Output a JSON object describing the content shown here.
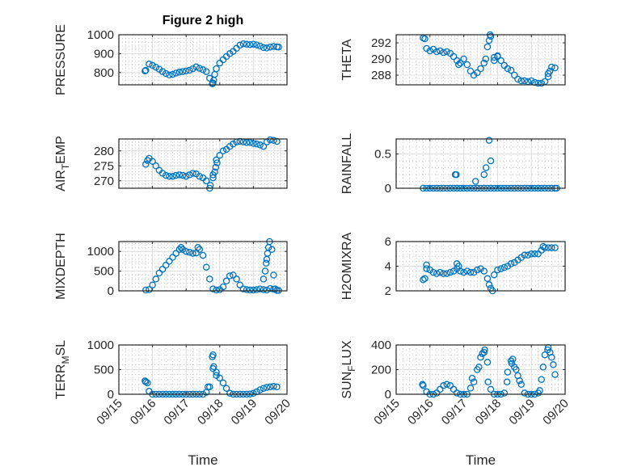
{
  "figure": {
    "title": "Figure 2 high",
    "marker_color": "#0072BD"
  },
  "chart_data": [
    {
      "type": "scatter",
      "ylabel": {
        "main": "PRESSURE",
        "sub": "",
        "rest": ""
      },
      "ylim": [
        735,
        1000
      ],
      "yticks": [
        800,
        900,
        1000
      ],
      "ytick_labels": [
        "800",
        "900",
        "1000"
      ],
      "xlim_days_from_0915": [
        0,
        5
      ],
      "x_start": 0.8,
      "x_step": 0.1,
      "y": [
        812,
        845,
        838,
        828,
        818,
        805,
        795,
        787,
        790,
        797,
        802,
        805,
        808,
        812,
        820,
        830,
        822,
        815,
        805,
        770,
        745,
        820,
        850,
        868,
        885,
        900,
        912,
        928,
        945,
        952,
        950,
        948,
        950,
        946,
        940,
        932,
        930,
        935,
        938,
        936
      ],
      "extra": [
        [
          0.78,
          808
        ],
        [
          2.78,
          740
        ],
        [
          2.82,
          760
        ],
        [
          2.85,
          790
        ],
        [
          4.75,
          935
        ]
      ]
    },
    {
      "type": "scatter",
      "ylabel": {
        "main": "THETA",
        "sub": "",
        "rest": ""
      },
      "ylim": [
        286.8,
        293
      ],
      "yticks": [
        288,
        290,
        292
      ],
      "ytick_labels": [
        "288",
        "290",
        "292"
      ],
      "xlim_days_from_0915": [
        0,
        5
      ],
      "x_start": 0.8,
      "x_step": 0.1,
      "y": [
        292.6,
        291.3,
        291,
        291.2,
        290.9,
        291,
        290.8,
        290.9,
        290.7,
        290.3,
        289.8,
        289.5,
        290,
        289.3,
        288.5,
        288,
        288.3,
        288.8,
        289.5,
        291.5,
        292.8,
        290.2,
        290.4,
        289.8,
        289.2,
        288.8,
        288.6,
        288,
        287.5,
        287.3,
        287.3,
        287.2,
        287.3,
        287.1,
        287,
        287,
        287.2,
        288.2,
        289,
        288.9
      ],
      "extra": [
        [
          0.85,
          292.5
        ],
        [
          1.85,
          289.3
        ],
        [
          2.65,
          290
        ],
        [
          2.75,
          292.3
        ],
        [
          2.78,
          293
        ],
        [
          2.9,
          289.8
        ],
        [
          3.0,
          290.3
        ],
        [
          4.5,
          287.8
        ],
        [
          4.55,
          288.5
        ]
      ]
    },
    {
      "type": "scatter",
      "ylabel": {
        "main": "AIR",
        "sub": "T",
        "rest": "EMP"
      },
      "ylim": [
        267.5,
        284
      ],
      "yticks": [
        270,
        275,
        280
      ],
      "ytick_labels": [
        "270",
        "275",
        "280"
      ],
      "xlim_days_from_0915": [
        0,
        5
      ],
      "x_start": 0.8,
      "x_step": 0.1,
      "y": [
        275.5,
        277.5,
        276.5,
        275,
        273.5,
        272.5,
        271.8,
        271.5,
        271.5,
        271.8,
        272,
        271.8,
        271.5,
        272,
        272.5,
        272.3,
        271.5,
        271,
        270,
        267.5,
        272,
        277,
        278.5,
        280,
        280.5,
        281.5,
        282.3,
        283,
        283.2,
        283,
        282.8,
        282.8,
        282.5,
        282.3,
        282,
        281.5,
        283,
        283.7,
        283.5,
        283.2
      ],
      "extra": [
        [
          0.85,
          276.8
        ],
        [
          2.72,
          268.5
        ],
        [
          2.8,
          271
        ],
        [
          2.85,
          273
        ],
        [
          2.88,
          274.5
        ],
        [
          2.92,
          276
        ]
      ]
    },
    {
      "type": "scatter",
      "ylabel": {
        "main": "RAINFALL",
        "sub": "",
        "rest": ""
      },
      "ylim": [
        0,
        0.72
      ],
      "yticks": [
        0,
        0.5
      ],
      "ytick_labels": [
        "0",
        "0.5"
      ],
      "xlim_days_from_0915": [
        0,
        5
      ],
      "x_start": 0.8,
      "x_step": 0.1,
      "y": [
        0,
        0,
        0,
        0,
        0,
        0,
        0,
        0,
        0,
        0,
        0,
        0,
        0,
        0,
        0,
        0,
        0,
        0,
        0,
        0,
        0,
        0,
        0,
        0,
        0,
        0,
        0,
        0,
        0,
        0,
        0,
        0,
        0,
        0,
        0,
        0,
        0,
        0,
        0,
        0
      ],
      "extra": [
        [
          1.75,
          0.2
        ],
        [
          1.78,
          0.2
        ],
        [
          2.35,
          0.1
        ],
        [
          2.6,
          0.2
        ],
        [
          2.66,
          0.3
        ],
        [
          2.75,
          0.7
        ],
        [
          2.8,
          0.4
        ],
        [
          4.75,
          0
        ]
      ]
    },
    {
      "type": "scatter",
      "ylabel": {
        "main": "MIXDEPTH",
        "sub": "",
        "rest": ""
      },
      "ylim": [
        0,
        1250
      ],
      "yticks": [
        0,
        500,
        1000
      ],
      "ytick_labels": [
        "0",
        "500",
        "1000"
      ],
      "xlim_days_from_0915": [
        0,
        5
      ],
      "x_start": 0.8,
      "x_step": 0.1,
      "y": [
        20,
        30,
        150,
        300,
        450,
        550,
        650,
        750,
        850,
        950,
        1050,
        1050,
        1000,
        980,
        950,
        960,
        1050,
        900,
        600,
        300,
        50,
        20,
        30,
        100,
        250,
        380,
        400,
        300,
        150,
        50,
        30,
        20,
        20,
        30,
        50,
        30,
        20,
        60,
        40,
        10
      ],
      "extra": [
        [
          4.3,
          300
        ],
        [
          4.35,
          500
        ],
        [
          4.38,
          700
        ],
        [
          4.4,
          800
        ],
        [
          4.42,
          950
        ],
        [
          4.45,
          1100
        ],
        [
          4.48,
          1250
        ],
        [
          4.55,
          1050
        ],
        [
          4.6,
          400
        ],
        [
          4.65,
          50
        ],
        [
          4.75,
          10
        ],
        [
          2.35,
          1100
        ],
        [
          1.85,
          1100
        ]
      ]
    },
    {
      "type": "scatter",
      "ylabel": {
        "main": "H2OMIXRA",
        "sub": "",
        "rest": ""
      },
      "ylim": [
        2,
        6
      ],
      "yticks": [
        2,
        4,
        6
      ],
      "ytick_labels": [
        "2",
        "4",
        "6"
      ],
      "xlim_days_from_0915": [
        0,
        5
      ],
      "x_start": 0.8,
      "x_step": 0.1,
      "y": [
        2.9,
        3.8,
        3.7,
        3.5,
        3.4,
        3.5,
        3.4,
        3.4,
        3.5,
        3.6,
        3.8,
        3.6,
        3.5,
        3.6,
        3.5,
        3.5,
        3.7,
        3.8,
        3.6,
        3.0,
        2.2,
        3.3,
        3.7,
        3.8,
        3.9,
        4.0,
        4.2,
        4.3,
        4.5,
        4.7,
        4.9,
        4.9,
        5.0,
        5.0,
        5.0,
        5.3,
        5.5,
        5.5,
        5.5,
        5.5
      ],
      "extra": [
        [
          0.85,
          3.0
        ],
        [
          0.9,
          4.1
        ],
        [
          1.8,
          4.2
        ],
        [
          1.85,
          4.0
        ],
        [
          2.75,
          2.5
        ],
        [
          2.85,
          2.0
        ],
        [
          4.35,
          5.6
        ]
      ]
    },
    {
      "type": "scatter",
      "ylabel": {
        "main": "TERR",
        "sub": "M",
        "rest": "SL"
      },
      "ylim": [
        0,
        1000
      ],
      "yticks": [
        0,
        500,
        1000
      ],
      "ytick_labels": [
        "0",
        "500",
        "1000"
      ],
      "xlim_days_from_0915": [
        0,
        5
      ],
      "x_start": 0.8,
      "x_step": 0.1,
      "xticks": [
        0,
        1,
        2,
        3,
        4,
        5
      ],
      "xtick_labels": [
        "09/15",
        "09/16",
        "09/17",
        "09/18",
        "09/19",
        "09/20"
      ],
      "xlabel": "Time",
      "y": [
        250,
        60,
        0,
        0,
        0,
        0,
        0,
        0,
        0,
        0,
        0,
        0,
        0,
        0,
        0,
        0,
        0,
        0,
        40,
        150,
        520,
        450,
        330,
        230,
        120,
        20,
        0,
        0,
        0,
        0,
        0,
        5,
        20,
        50,
        90,
        120,
        140,
        150,
        160,
        150
      ],
      "extra": [
        [
          0.78,
          270
        ],
        [
          0.85,
          230
        ],
        [
          2.65,
          150
        ],
        [
          2.78,
          760
        ],
        [
          2.8,
          800
        ],
        [
          2.82,
          560
        ],
        [
          2.9,
          380
        ]
      ]
    },
    {
      "type": "scatter",
      "ylabel": {
        "main": "SUN",
        "sub": "F",
        "rest": "LUX"
      },
      "ylim": [
        0,
        400
      ],
      "yticks": [
        0,
        200,
        400
      ],
      "ytick_labels": [
        "0",
        "200",
        "400"
      ],
      "xlim_days_from_0915": [
        0,
        5
      ],
      "x_start": 0.8,
      "x_step": 0.1,
      "xticks": [
        0,
        1,
        2,
        3,
        4,
        5
      ],
      "xtick_labels": [
        "09/15",
        "09/16",
        "09/17",
        "09/18",
        "09/19",
        "09/20"
      ],
      "xlabel": "Time",
      "y": [
        70,
        20,
        0,
        0,
        10,
        40,
        70,
        80,
        70,
        40,
        10,
        0,
        0,
        0,
        50,
        100,
        200,
        300,
        340,
        260,
        40,
        0,
        0,
        0,
        10,
        180,
        270,
        220,
        150,
        80,
        10,
        0,
        0,
        0,
        10,
        120,
        320,
        380,
        300,
        160
      ],
      "extra": [
        [
          0.78,
          80
        ],
        [
          2.25,
          130
        ],
        [
          2.45,
          220
        ],
        [
          2.55,
          330
        ],
        [
          2.62,
          360
        ],
        [
          2.72,
          100
        ],
        [
          3.28,
          100
        ],
        [
          3.42,
          250
        ],
        [
          3.45,
          285
        ],
        [
          3.55,
          200
        ],
        [
          3.65,
          110
        ],
        [
          4.25,
          30
        ],
        [
          4.35,
          220
        ],
        [
          4.48,
          360
        ],
        [
          4.55,
          340
        ],
        [
          4.65,
          240
        ]
      ]
    }
  ]
}
